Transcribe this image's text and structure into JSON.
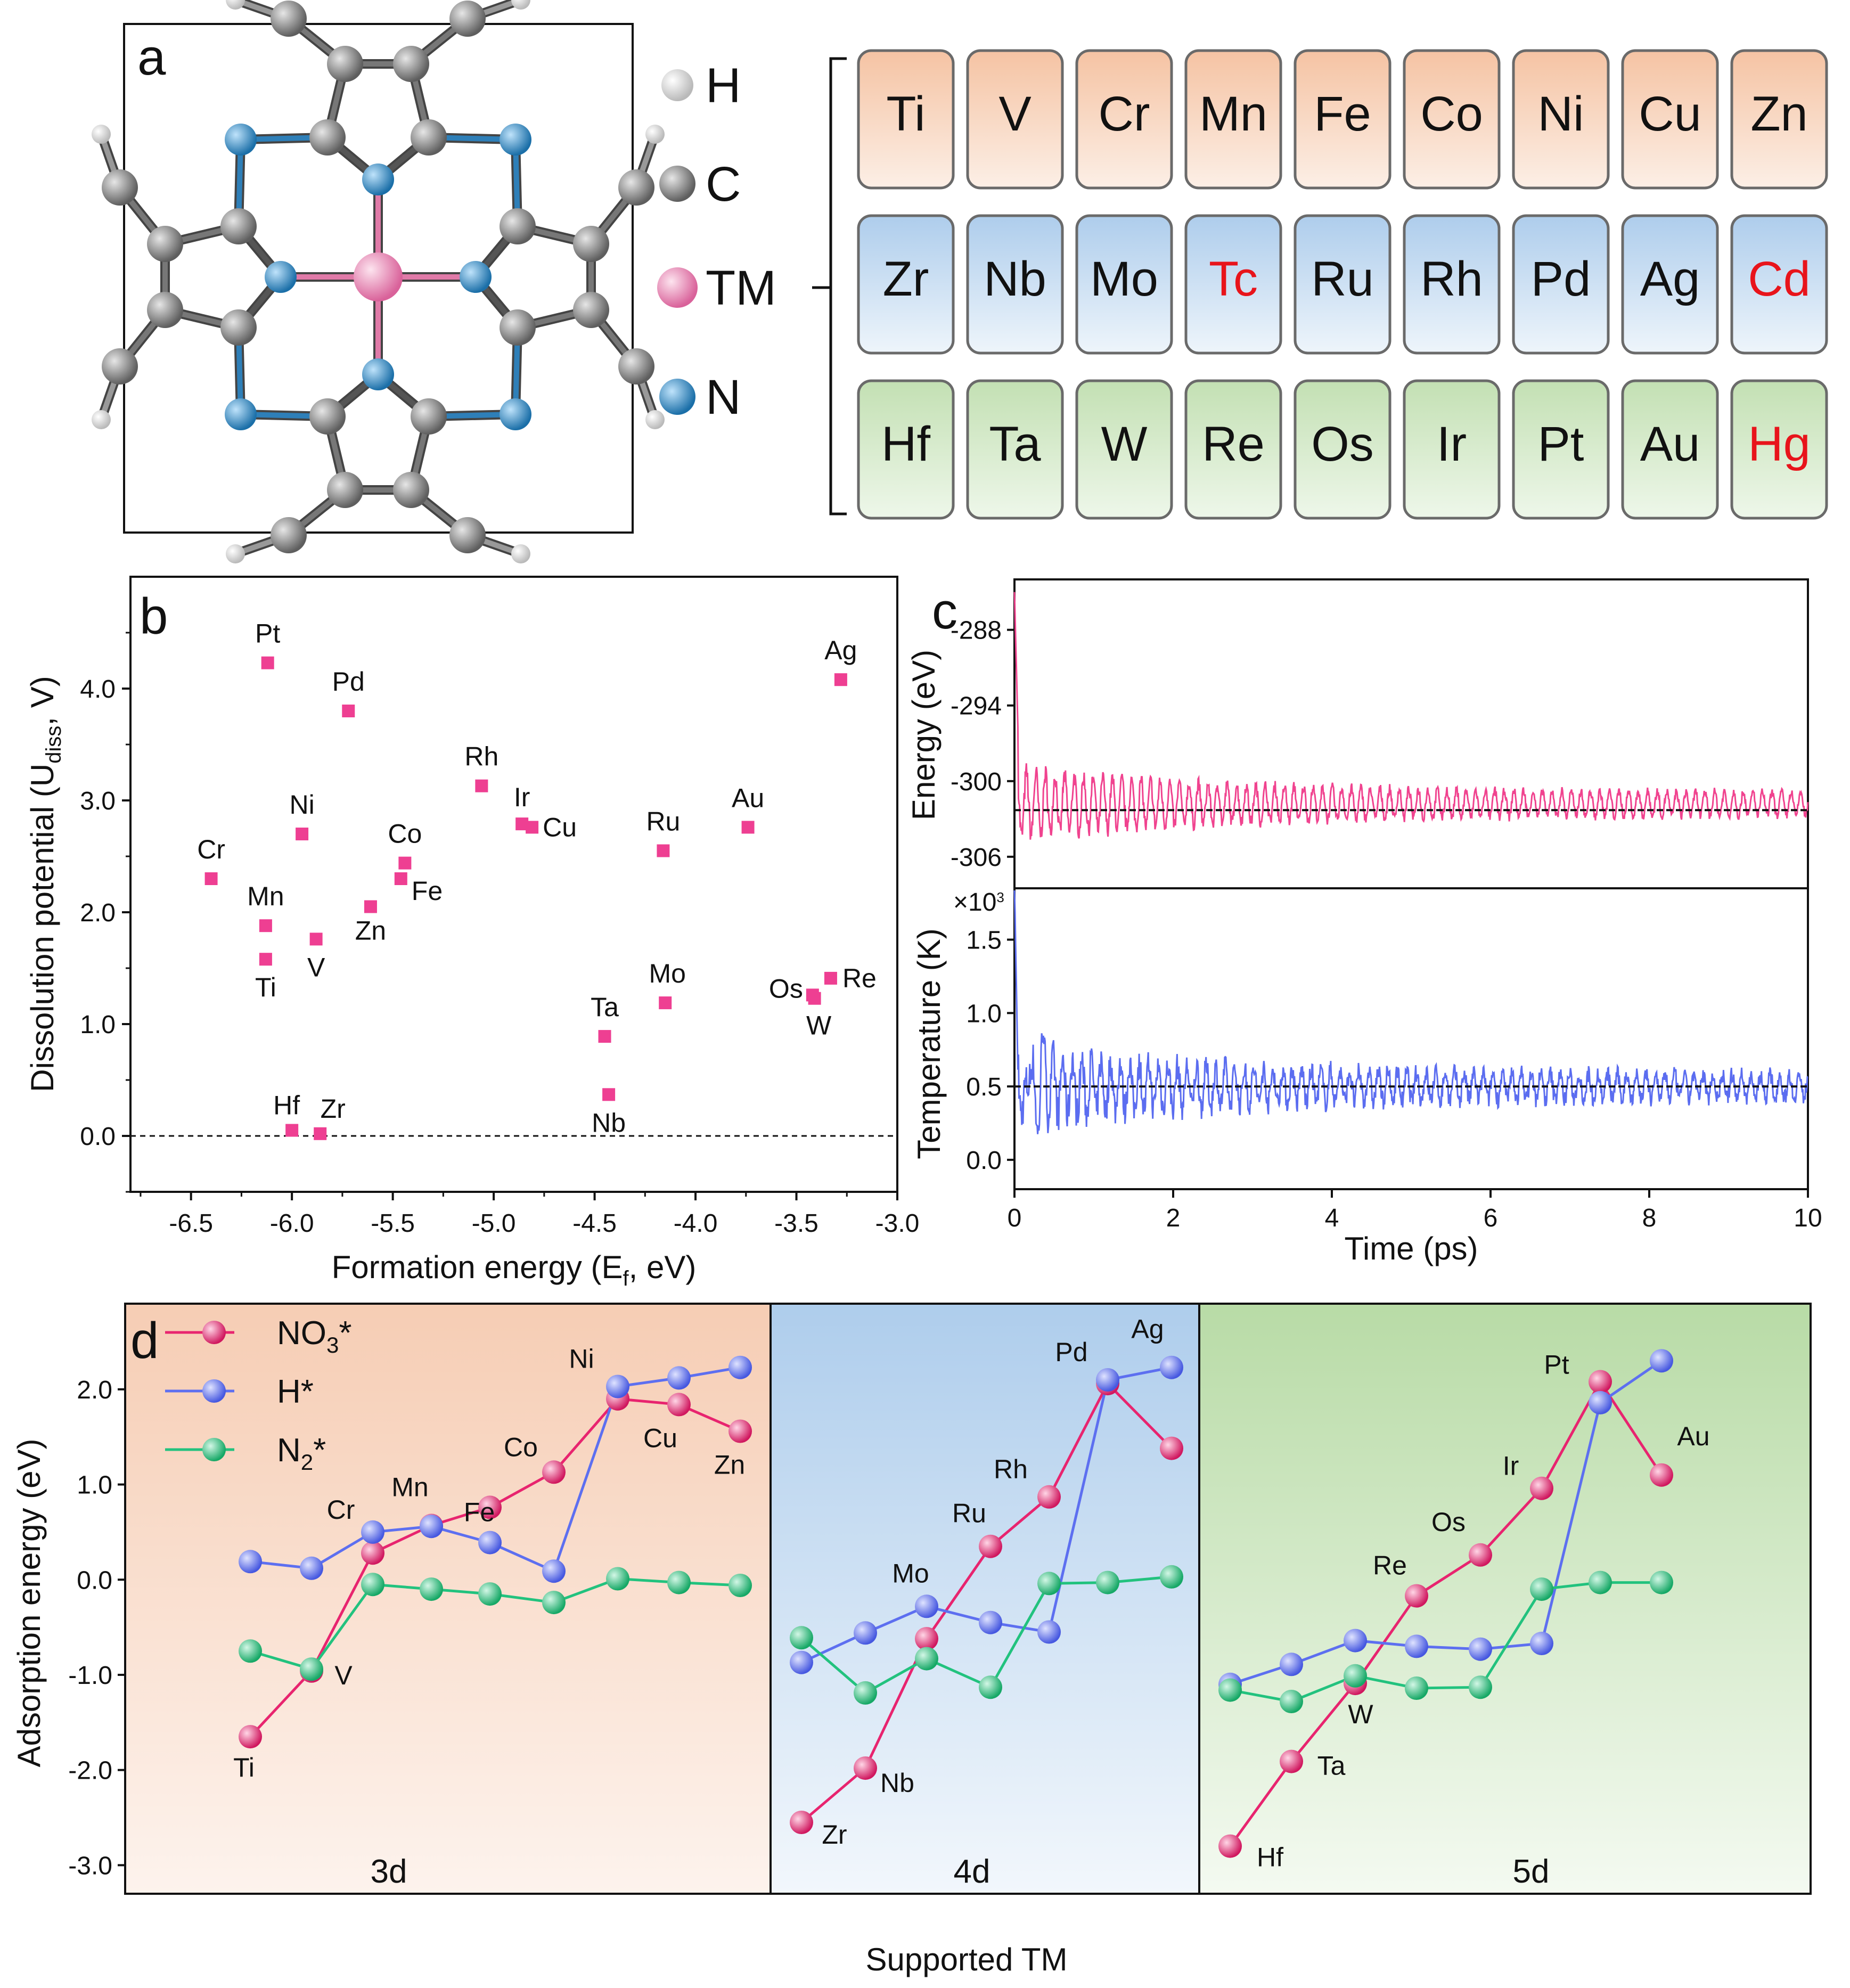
{
  "panel_a": {
    "letter": "a",
    "legend": [
      {
        "label": "H",
        "color": "#d9d9d9"
      },
      {
        "label": "C",
        "color": "#8a8a8a"
      },
      {
        "label": "TM",
        "color": "#e98bb4"
      },
      {
        "label": "N",
        "color": "#2e8bc7"
      }
    ],
    "rows": [
      {
        "elements": [
          "Ti",
          "V",
          "Cr",
          "Mn",
          "Fe",
          "Co",
          "Ni",
          "Cu",
          "Zn"
        ],
        "color": "#f5c7a9"
      },
      {
        "elements": [
          "Zr",
          "Nb",
          "Mo",
          "Tc",
          "Ru",
          "Rh",
          "Pd",
          "Ag",
          "Cd"
        ],
        "color": "#b6d3ee"
      },
      {
        "elements": [
          "Hf",
          "Ta",
          "W",
          "Re",
          "Os",
          "Ir",
          "Pt",
          "Au",
          "Hg"
        ],
        "color": "#c9e3bd"
      }
    ],
    "red_elements": [
      "Tc",
      "Cd",
      "Hg"
    ]
  },
  "chart_data": [
    {
      "id": "b",
      "type": "scatter",
      "letter": "b",
      "xlabel": "Formation energy (E",
      "xlabel_sub": "f",
      "xlabel_end": ", eV)",
      "ylabel": "Dissolution potential (U",
      "ylabel_sub": "diss",
      "ylabel_end": ", V)",
      "xlim": [
        -6.8,
        -3.0
      ],
      "ylim": [
        -0.5,
        5.0
      ],
      "xticks": [
        "-6.5",
        "-6.0",
        "-5.5",
        "-5.0",
        "-4.5",
        "-4.0",
        "-3.5",
        "-3.0"
      ],
      "yticks": [
        "0.0",
        "1.0",
        "2.0",
        "3.0",
        "4.0"
      ],
      "marker_color": "#ee3f92",
      "points": [
        {
          "label": "Pt",
          "x": -6.12,
          "y": 4.23
        },
        {
          "label": "Pd",
          "x": -5.72,
          "y": 3.8
        },
        {
          "label": "Ag",
          "x": -3.28,
          "y": 4.08
        },
        {
          "label": "Rh",
          "x": -5.06,
          "y": 3.13
        },
        {
          "label": "Ir",
          "x": -4.86,
          "y": 2.79
        },
        {
          "label": "Cu",
          "x": -4.81,
          "y": 2.76
        },
        {
          "label": "Ni",
          "x": -5.95,
          "y": 2.7
        },
        {
          "label": "Au",
          "x": -3.74,
          "y": 2.76
        },
        {
          "label": "Ru",
          "x": -4.16,
          "y": 2.55
        },
        {
          "label": "Cr",
          "x": -6.4,
          "y": 2.3
        },
        {
          "label": "Co",
          "x": -5.44,
          "y": 2.44
        },
        {
          "label": "Fe",
          "x": -5.46,
          "y": 2.3
        },
        {
          "label": "Zn",
          "x": -5.61,
          "y": 2.05
        },
        {
          "label": "Mn",
          "x": -6.13,
          "y": 1.88
        },
        {
          "label": "V",
          "x": -5.88,
          "y": 1.76
        },
        {
          "label": "Ti",
          "x": -6.13,
          "y": 1.58
        },
        {
          "label": "Os",
          "x": -3.42,
          "y": 1.26
        },
        {
          "label": "Re",
          "x": -3.33,
          "y": 1.41
        },
        {
          "label": "W",
          "x": -3.41,
          "y": 1.23
        },
        {
          "label": "Mo",
          "x": -4.15,
          "y": 1.19
        },
        {
          "label": "Ta",
          "x": -4.45,
          "y": 0.89
        },
        {
          "label": "Nb",
          "x": -4.43,
          "y": 0.37
        },
        {
          "label": "Hf",
          "x": -6.0,
          "y": 0.05
        },
        {
          "label": "Zr",
          "x": -5.86,
          "y": 0.02
        }
      ]
    },
    {
      "id": "c",
      "type": "line",
      "letter": "c",
      "xlabel": "Time (ps)",
      "xlim": [
        0,
        10
      ],
      "xticks": [
        "0",
        "2",
        "4",
        "6",
        "8",
        "10"
      ],
      "top": {
        "ylabel": "Energy (eV)",
        "yticks": [
          "-288",
          "-294",
          "-300",
          "-306"
        ],
        "ylim": [
          -308.5,
          -284
        ],
        "mean": -302.3,
        "color": "#f0438f"
      },
      "bottom": {
        "ylabel": "Temperature (K)",
        "multiplier": "×10",
        "multiplier_exp": "3",
        "yticks": [
          "0.0",
          "0.5",
          "1.0",
          "1.5"
        ],
        "ylim": [
          -0.2,
          1.85
        ],
        "mean": 0.5,
        "color": "#5b6df0"
      }
    },
    {
      "id": "d",
      "type": "line",
      "letter": "d",
      "xlabel": "Supported TM",
      "ylabel": "Adsorption energy (eV)",
      "ylim": [
        -3.3,
        2.9
      ],
      "yticks": [
        "2.0",
        "1.0",
        "0.0",
        "-1.0",
        "-2.0",
        "-3.0"
      ],
      "sections": [
        {
          "label": "3d",
          "color": "#f5d2bd",
          "elements": [
            "Ti",
            "V",
            "Cr",
            "Mn",
            "Fe",
            "Co",
            "Ni",
            "Cu",
            "Zn"
          ]
        },
        {
          "label": "4d",
          "color": "#b6d3ee",
          "elements": [
            "Zr",
            "Nb",
            "Mo",
            "Ru",
            "Rh",
            "Pd",
            "Ag"
          ]
        },
        {
          "label": "5d",
          "color": "#bfdfb0",
          "elements": [
            "Hf",
            "Ta",
            "W",
            "Re",
            "Os",
            "Ir",
            "Pt",
            "Au"
          ]
        }
      ],
      "series": [
        {
          "name": "NO",
          "name_sub": "3",
          "name_end": "*",
          "color": "#e8246f",
          "values": [
            [
              -1.65,
              -0.96,
              0.28,
              0.57,
              0.76,
              1.13,
              1.9,
              1.84,
              1.56
            ],
            [
              -2.55,
              -1.98,
              -0.62,
              0.35,
              0.87,
              2.06,
              1.38
            ],
            [
              -2.8,
              -1.91,
              -1.09,
              -0.17,
              0.26,
              0.96,
              2.08,
              1.1
            ]
          ]
        },
        {
          "name": "H*",
          "name_sub": "",
          "name_end": "",
          "color": "#5d6ff0",
          "values": [
            [
              0.19,
              0.12,
              0.5,
              0.56,
              0.39,
              0.09,
              2.03,
              2.12,
              2.23
            ],
            [
              -0.87,
              -0.56,
              -0.28,
              -0.45,
              -0.55,
              2.1,
              2.23
            ],
            [
              -1.1,
              -0.89,
              -0.64,
              -0.7,
              -0.73,
              -0.67,
              1.86,
              2.3
            ]
          ]
        },
        {
          "name": "N",
          "name_sub": "2",
          "name_end": "*",
          "color": "#22c27e",
          "values": [
            [
              -0.75,
              -0.94,
              -0.05,
              -0.1,
              -0.15,
              -0.24,
              0.01,
              -0.03,
              -0.06
            ],
            [
              -0.61,
              -1.19,
              -0.83,
              -1.13,
              -0.04,
              -0.03,
              0.03
            ],
            [
              -1.16,
              -1.28,
              -1.01,
              -1.14,
              -1.13,
              -0.1,
              -0.03,
              -0.03
            ]
          ]
        }
      ],
      "labeled_points": [
        {
          "label": "Ti",
          "s": 0,
          "i": 0,
          "v": -1.65
        },
        {
          "label": "V",
          "s": 0,
          "i": 1,
          "v": -0.96
        },
        {
          "label": "Cr",
          "s": 0,
          "i": 2,
          "v": 0.5
        },
        {
          "label": "Mn",
          "s": 0,
          "i": 3,
          "v": 0.57
        },
        {
          "label": "Fe",
          "s": 0,
          "i": 4,
          "v": 0.39
        },
        {
          "label": "Co",
          "s": 0,
          "i": 5,
          "v": 1.13
        },
        {
          "label": "Ni",
          "s": 0,
          "i": 6,
          "v": 2.03
        },
        {
          "label": "Cu",
          "s": 0,
          "i": 7,
          "v": 1.84
        },
        {
          "label": "Zn",
          "s": 0,
          "i": 8,
          "v": 1.56
        },
        {
          "label": "Zr",
          "s": 1,
          "i": 0,
          "v": -2.55
        },
        {
          "label": "Nb",
          "s": 1,
          "i": 1,
          "v": -1.98
        },
        {
          "label": "Mo",
          "s": 1,
          "i": 2,
          "v": -0.28
        },
        {
          "label": "Ru",
          "s": 1,
          "i": 3,
          "v": 0.35
        },
        {
          "label": "Rh",
          "s": 1,
          "i": 4,
          "v": 0.87
        },
        {
          "label": "Pd",
          "s": 1,
          "i": 5,
          "v": 2.1
        },
        {
          "label": "Ag",
          "s": 1,
          "i": 6,
          "v": 2.23
        },
        {
          "label": "Hf",
          "s": 2,
          "i": 0,
          "v": -2.8
        },
        {
          "label": "Ta",
          "s": 2,
          "i": 1,
          "v": -1.91
        },
        {
          "label": "W",
          "s": 2,
          "i": 2,
          "v": -1.09
        },
        {
          "label": "Re",
          "s": 2,
          "i": 3,
          "v": -0.17
        },
        {
          "label": "Os",
          "s": 2,
          "i": 4,
          "v": 0.26
        },
        {
          "label": "Ir",
          "s": 2,
          "i": 5,
          "v": 0.96
        },
        {
          "label": "Pt",
          "s": 2,
          "i": 6,
          "v": 2.08
        },
        {
          "label": "Au",
          "s": 2,
          "i": 7,
          "v": 1.86
        }
      ]
    }
  ]
}
